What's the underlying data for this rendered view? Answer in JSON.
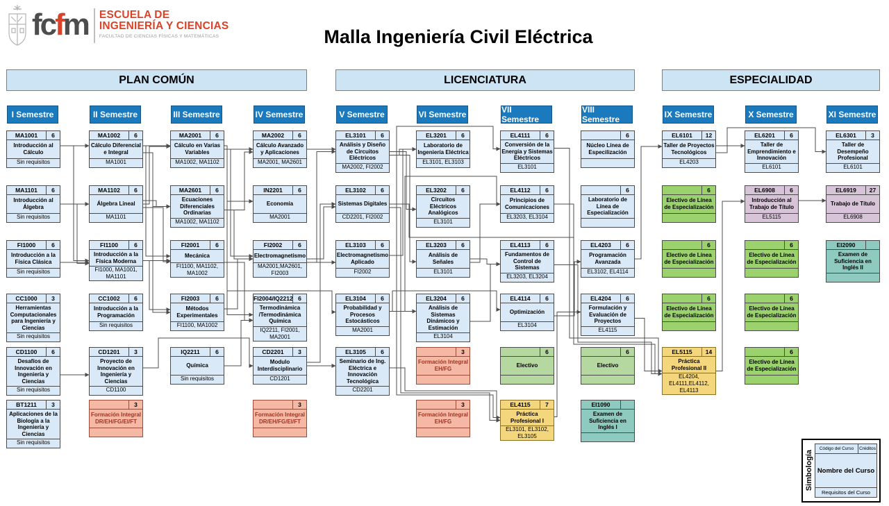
{
  "header": {
    "title": "Malla Ingeniería Civil Eléctrica",
    "logo": {
      "fcfm_part1": "fc",
      "fcfm_red": "f",
      "fcfm_part2": "m",
      "school_line1": "ESCUELA DE",
      "school_line2": "INGENIERÍA Y CIENCIAS",
      "faculty": "FACULTAD DE CIENCIAS FÍSICAS Y MATEMÁTICAS"
    }
  },
  "sections": [
    {
      "label": "PLAN COMÚN",
      "col_start": 1,
      "col_end": 4
    },
    {
      "label": "LICENCIATURA",
      "col_start": 5,
      "col_end": 8
    },
    {
      "label": "ESPECIALIDAD",
      "col_start": 9,
      "col_end": 11
    }
  ],
  "semesters": [
    {
      "label": "I Semestre"
    },
    {
      "label": "II Semestre"
    },
    {
      "label": "III Semestre"
    },
    {
      "label": "IV Semestre"
    },
    {
      "label": "V Semestre"
    },
    {
      "label": "VI Semestre"
    },
    {
      "label": "VII Semestre"
    },
    {
      "label": "VIII Semestre"
    },
    {
      "label": "IX Semestre"
    },
    {
      "label": "X Semestre"
    },
    {
      "label": "XI Semestre"
    }
  ],
  "colors": {
    "semester_header_bg": "#1b79bd",
    "semester_header_border": "#14568a",
    "semester_header_text": "#ffffff",
    "section_band_bg": "#cde4f5",
    "section_band_border": "#7f7f7f",
    "core_bg": "#d9e9f7",
    "core_border": "#4a4a4a",
    "fi_bg": "#f5b8a4",
    "fi_border": "#9c4a38",
    "fi_text": "#9e3423",
    "electivo_bg": "#b5d8a1",
    "electivo_border": "#4a4a4a",
    "linea_bg": "#9bd26e",
    "linea_border": "#4a4a4a",
    "practica_bg": "#f4d77c",
    "practica_border": "#8a7020",
    "titulo_bg": "#d8c4d8",
    "titulo_border": "#4a4a4a",
    "ingles_bg": "#8ecabf",
    "ingles_border": "#4a4a4a",
    "wire": "#4d4d4d"
  },
  "courses": [
    {
      "id": "MA1001",
      "col": 1,
      "row": 1,
      "code": "MA1001",
      "credits": "6",
      "name": "Introducción al Cálculo",
      "req": "Sin requisitos",
      "type": "core"
    },
    {
      "id": "MA1101",
      "col": 1,
      "row": 2,
      "code": "MA1101",
      "credits": "6",
      "name": "Introducción al Álgebra",
      "req": "Sin requisitos",
      "type": "core"
    },
    {
      "id": "FI1000",
      "col": 1,
      "row": 3,
      "code": "FI1000",
      "credits": "6",
      "name": "Introducción a la Física Clásica",
      "req": "Sin requisitos",
      "type": "core"
    },
    {
      "id": "CC1000",
      "col": 1,
      "row": 4,
      "code": "CC1000",
      "credits": "3",
      "name": "Herramientas Computacionales para Ingeniería y Ciencias",
      "req": "Sin requisitos",
      "type": "core"
    },
    {
      "id": "CD1100",
      "col": 1,
      "row": 5,
      "code": "CD1100",
      "credits": "6",
      "name": "Desafíos de Innovación en Ingeniería y Ciencias",
      "req": "Sin requisitos",
      "type": "core"
    },
    {
      "id": "BT1211",
      "col": 1,
      "row": 6,
      "code": "BT1211",
      "credits": "3",
      "name": "Aplicaciones de la Biología a la Ingeniería y Ciencias",
      "req": "Sin requisitos",
      "type": "core"
    },
    {
      "id": "MA1002",
      "col": 2,
      "row": 1,
      "code": "MA1002",
      "credits": "6",
      "name": "Cálculo Diferencial e Integral",
      "req": "MA1001",
      "type": "core"
    },
    {
      "id": "MA1102",
      "col": 2,
      "row": 2,
      "code": "MA1102",
      "credits": "6",
      "name": "Álgebra Lineal",
      "req": "MA1101",
      "type": "core"
    },
    {
      "id": "FI1100",
      "col": 2,
      "row": 3,
      "code": "FI1100",
      "credits": "6",
      "name": "Introducción a la Física Moderna",
      "req": "FI1000, MA1001, MA1101",
      "type": "core"
    },
    {
      "id": "CC1002",
      "col": 2,
      "row": 4,
      "code": "CC1002",
      "credits": "6",
      "name": "Introducción a la Programación",
      "req": "Sin requisitos",
      "type": "core"
    },
    {
      "id": "CD1201",
      "col": 2,
      "row": 5,
      "code": "CD1201",
      "credits": "3",
      "name": "Proyecto de Innovación en Ingeniería y Ciencias",
      "req": "CD1100",
      "type": "core"
    },
    {
      "id": "FI_II",
      "col": 2,
      "row": 6,
      "code": "",
      "credits": "3",
      "name": "Formación Integral DR/EH/FG/EI/FT",
      "req": "",
      "type": "fi"
    },
    {
      "id": "MA2001",
      "col": 3,
      "row": 1,
      "code": "MA2001",
      "credits": "6",
      "name": "Cálculo en Varias Variables",
      "req": "MA1002, MA1102",
      "type": "core"
    },
    {
      "id": "MA2601",
      "col": 3,
      "row": 2,
      "code": "MA2601",
      "credits": "6",
      "name": "Ecuaciones Diferenciales Ordinarias",
      "req": "MA1002, MA1102",
      "type": "core"
    },
    {
      "id": "FI2001",
      "col": 3,
      "row": 3,
      "code": "FI2001",
      "credits": "6",
      "name": "Mecánica",
      "req": "FI1100, MA1102, MA1002",
      "type": "core"
    },
    {
      "id": "FI2003",
      "col": 3,
      "row": 4,
      "code": "FI2003",
      "credits": "6",
      "name": "Métodos Experimentales",
      "req": "FI1100, MA1002",
      "type": "core"
    },
    {
      "id": "IQ2211",
      "col": 3,
      "row": 5,
      "code": "IQ2211",
      "credits": "6",
      "name": "Química",
      "req": "Sin requisitos",
      "type": "core"
    },
    {
      "id": "MA2002",
      "col": 4,
      "row": 1,
      "code": "MA2002",
      "credits": "6",
      "name": "Cálculo Avanzado y Aplicaciones",
      "req": "MA2001, MA2601",
      "type": "core"
    },
    {
      "id": "IN2201",
      "col": 4,
      "row": 2,
      "code": "IN2201",
      "credits": "6",
      "name": "Economía",
      "req": "MA2001",
      "type": "core"
    },
    {
      "id": "FI2002",
      "col": 4,
      "row": 3,
      "code": "FI2002",
      "credits": "6",
      "name": "Electromagnetismo",
      "req": "MA2001,MA2601, FI2003",
      "type": "core"
    },
    {
      "id": "FI2004",
      "col": 4,
      "row": 4,
      "code": "FI2004/IQ2212",
      "credits": "6",
      "name": "Termodinámica /Termodinámica Química",
      "req": "IQ2211, FI2001, MA2001",
      "type": "core"
    },
    {
      "id": "CD2201",
      "col": 4,
      "row": 5,
      "code": "CD2201",
      "credits": "3",
      "name": "Modulo Interdisciplinario",
      "req": "CD1201",
      "type": "core"
    },
    {
      "id": "FI_IV",
      "col": 4,
      "row": 6,
      "code": "",
      "credits": "3",
      "name": "Formación Integral DR/EH/FG/EI/FT",
      "req": "",
      "type": "fi"
    },
    {
      "id": "EL3101",
      "col": 5,
      "row": 1,
      "code": "EL3101",
      "credits": "6",
      "name": "Análisis y Diseño de Circuitos Eléctricos",
      "req": "MA2002, FI2002",
      "type": "core"
    },
    {
      "id": "EL3102",
      "col": 5,
      "row": 2,
      "code": "EL3102",
      "credits": "6",
      "name": "Sistemas Digitales",
      "req": "CD2201, FI2002",
      "type": "core"
    },
    {
      "id": "EL3103",
      "col": 5,
      "row": 3,
      "code": "EL3103",
      "credits": "6",
      "name": "Electromagnetismo Aplicado",
      "req": "FI2002",
      "type": "core"
    },
    {
      "id": "EL3104",
      "col": 5,
      "row": 4,
      "code": "EL3104",
      "credits": "6",
      "name": "Probabilidad y Procesos Estocásticos",
      "req": "MA2001",
      "type": "core"
    },
    {
      "id": "EL3105",
      "col": 5,
      "row": 5,
      "code": "EL3105",
      "credits": "6",
      "name": "Seminario de Ing. Eléctrica e Innovación Tecnológica",
      "req": "CD2201",
      "type": "core"
    },
    {
      "id": "EL3201",
      "col": 6,
      "row": 1,
      "code": "EL3201",
      "credits": "6",
      "name": "Laboratorio de Ingeniería Eléctrica",
      "req": "EL3101, EL3103",
      "type": "core"
    },
    {
      "id": "EL3202",
      "col": 6,
      "row": 2,
      "code": "EL3202",
      "credits": "6",
      "name": "Circuitos Eléctricos Analógicos",
      "req": "EL3101",
      "type": "core"
    },
    {
      "id": "EL3203",
      "col": 6,
      "row": 3,
      "code": "EL3203",
      "credits": "6",
      "name": "Análisis de Señales",
      "req": "EL3101",
      "type": "core"
    },
    {
      "id": "EL3204",
      "col": 6,
      "row": 4,
      "code": "EL3204",
      "credits": "6",
      "name": "Análisis de Sistemas Dinámicos y Estimación",
      "req": "EL3104",
      "type": "core"
    },
    {
      "id": "FI_VI1",
      "col": 6,
      "row": 5,
      "code": "",
      "credits": "3",
      "name": "Formación Integral EH/FG",
      "req": "",
      "type": "fi"
    },
    {
      "id": "FI_VI2",
      "col": 6,
      "row": 6,
      "code": "",
      "credits": "3",
      "name": "Formación Integral EH/FG",
      "req": "",
      "type": "fi"
    },
    {
      "id": "EL4111",
      "col": 7,
      "row": 1,
      "code": "EL4111",
      "credits": "6",
      "name": "Conversión de la Energía y Sistemas Eléctricos",
      "req": "EL3101",
      "type": "core"
    },
    {
      "id": "EL4112",
      "col": 7,
      "row": 2,
      "code": "EL4112",
      "credits": "6",
      "name": "Principios de Comunicaciones",
      "req": "EL3203, EL3104",
      "type": "core"
    },
    {
      "id": "EL4113",
      "col": 7,
      "row": 3,
      "code": "EL4113",
      "credits": "6",
      "name": "Fundamentos de Control de Sistemas",
      "req": "EL3203, EL3204",
      "type": "core"
    },
    {
      "id": "EL4114",
      "col": 7,
      "row": 4,
      "code": "EL4114",
      "credits": "6",
      "name": "Optimización",
      "req": "EL3104",
      "type": "core"
    },
    {
      "id": "ELEC_7",
      "col": 7,
      "row": 5,
      "code": "",
      "credits": "6",
      "name": "Electivo",
      "req": "",
      "type": "electivo"
    },
    {
      "id": "EL4115",
      "col": 7,
      "row": 6,
      "code": "EL4115",
      "credits": "7",
      "name": "Práctica Profesional I",
      "req": "EL3101, EL3102, EL3105",
      "type": "practica"
    },
    {
      "id": "NUCLEO",
      "col": 8,
      "row": 1,
      "code": "",
      "credits": "6",
      "name": "Núcleo Línea de Especilización",
      "req": "",
      "type": "core"
    },
    {
      "id": "LABLIN",
      "col": 8,
      "row": 2,
      "code": "",
      "credits": "6",
      "name": "Laboratorio de Línea de Especialización",
      "req": "",
      "type": "core"
    },
    {
      "id": "EL4203",
      "col": 8,
      "row": 3,
      "code": "EL4203",
      "credits": "6",
      "name": "Programación Avanzada",
      "req": "EL3102, EL4114",
      "type": "core"
    },
    {
      "id": "EL4204",
      "col": 8,
      "row": 4,
      "code": "EL4204",
      "credits": "6",
      "name": "Formulación y Evaluación de Proyectos",
      "req": "EL4115",
      "type": "core"
    },
    {
      "id": "ELEC_8",
      "col": 8,
      "row": 5,
      "code": "",
      "credits": "6",
      "name": "Electivo",
      "req": "",
      "type": "electivo"
    },
    {
      "id": "EI1090",
      "col": 8,
      "row": 6,
      "code": "EI1090",
      "credits": "",
      "name": "Examen de Suficiencia en Inglés I",
      "req": "",
      "type": "ingles"
    },
    {
      "id": "EL6101",
      "col": 9,
      "row": 1,
      "code": "EL6101",
      "credits": "12",
      "name": "Taller de Proyectos Tecnológicos",
      "req": "EL4203",
      "type": "core"
    },
    {
      "id": "LIN9A",
      "col": 9,
      "row": 2,
      "code": "",
      "credits": "6",
      "name": "Electivo de Línea de Especialización",
      "req": "",
      "type": "linea"
    },
    {
      "id": "LIN9B",
      "col": 9,
      "row": 3,
      "code": "",
      "credits": "6",
      "name": "Electivo de Línea de Especialización",
      "req": "",
      "type": "linea"
    },
    {
      "id": "LIN9C",
      "col": 9,
      "row": 4,
      "code": "",
      "credits": "6",
      "name": "Electivo de Línea de Especialización",
      "req": "",
      "type": "linea"
    },
    {
      "id": "EL5115",
      "col": 9,
      "row": 5,
      "code": "EL5115",
      "credits": "14",
      "name": "Práctica Profesional II",
      "req": "EL4204, EL4111,EL4112, EL4113",
      "type": "practica"
    },
    {
      "id": "EL6201",
      "col": 10,
      "row": 1,
      "code": "EL6201",
      "credits": "6",
      "name": "Taller de Emprendimiento e Innovación",
      "req": "EL6101",
      "type": "core"
    },
    {
      "id": "EL6908",
      "col": 10,
      "row": 2,
      "code": "EL6908",
      "credits": "6",
      "name": "Introducción al Trabajo de Título",
      "req": "EL5115",
      "type": "titulo"
    },
    {
      "id": "LIN10A",
      "col": 10,
      "row": 3,
      "code": "",
      "credits": "6",
      "name": "Electivo de Línea de Especialización",
      "req": "",
      "type": "linea"
    },
    {
      "id": "LIN10B",
      "col": 10,
      "row": 4,
      "code": "",
      "credits": "6",
      "name": "Electivo de Línea de Especialización",
      "req": "",
      "type": "linea"
    },
    {
      "id": "LIN10C",
      "col": 10,
      "row": 5,
      "code": "",
      "credits": "6",
      "name": "Electivo de Línea de Especialización",
      "req": "",
      "type": "linea"
    },
    {
      "id": "EL6301",
      "col": 11,
      "row": 1,
      "code": "EL6301",
      "credits": "3",
      "name": "Taller de Desempeño Profesional",
      "req": "EL6101",
      "type": "core"
    },
    {
      "id": "EL6919",
      "col": 11,
      "row": 2,
      "code": "EL6919",
      "credits": "27",
      "name": "Trabajo de Título",
      "req": "EL6908",
      "type": "titulo"
    },
    {
      "id": "EI2090",
      "col": 11,
      "row": 3,
      "code": "EI2090",
      "credits": "",
      "name": "Examen de Suficiencia en Inglés II",
      "req": "",
      "type": "ingles"
    }
  ],
  "links": [
    [
      "MA1001",
      "MA1002"
    ],
    [
      "MA1101",
      "MA1102"
    ],
    [
      "FI1000",
      "FI1100"
    ],
    [
      "MA1001",
      "FI1100"
    ],
    [
      "MA1101",
      "FI1100"
    ],
    [
      "CD1100",
      "CD1201"
    ],
    [
      "MA1002",
      "MA2001"
    ],
    [
      "MA1102",
      "MA2001"
    ],
    [
      "MA1002",
      "MA2601"
    ],
    [
      "MA1102",
      "MA2601"
    ],
    [
      "FI1100",
      "FI2001"
    ],
    [
      "MA1102",
      "FI2001"
    ],
    [
      "MA1002",
      "FI2001"
    ],
    [
      "FI1100",
      "FI2003"
    ],
    [
      "MA1002",
      "FI2003"
    ],
    [
      "CD1201",
      "CD2201"
    ],
    [
      "MA2001",
      "MA2002"
    ],
    [
      "MA2601",
      "MA2002"
    ],
    [
      "MA2001",
      "IN2201"
    ],
    [
      "MA2001",
      "FI2002"
    ],
    [
      "MA2601",
      "FI2002"
    ],
    [
      "FI2003",
      "FI2002"
    ],
    [
      "IQ2211",
      "FI2004"
    ],
    [
      "FI2001",
      "FI2004"
    ],
    [
      "MA2001",
      "FI2004"
    ],
    [
      "MA2002",
      "EL3101"
    ],
    [
      "FI2002",
      "EL3101"
    ],
    [
      "CD2201",
      "EL3102"
    ],
    [
      "FI2002",
      "EL3102"
    ],
    [
      "FI2002",
      "EL3103"
    ],
    [
      "MA2001",
      "EL3104"
    ],
    [
      "CD2201",
      "EL3105"
    ],
    [
      "EL3101",
      "EL3201"
    ],
    [
      "EL3103",
      "EL3201"
    ],
    [
      "EL3101",
      "EL3202"
    ],
    [
      "EL3101",
      "EL3203"
    ],
    [
      "EL3104",
      "EL3204"
    ],
    [
      "EL3101",
      "EL4111"
    ],
    [
      "EL3203",
      "EL4112"
    ],
    [
      "EL3104",
      "EL4112"
    ],
    [
      "EL3203",
      "EL4113"
    ],
    [
      "EL3204",
      "EL4113"
    ],
    [
      "EL3104",
      "EL4114"
    ],
    [
      "EL3101",
      "EL4115"
    ],
    [
      "EL3102",
      "EL4115"
    ],
    [
      "EL3105",
      "EL4115"
    ],
    [
      "EL3102",
      "EL4203"
    ],
    [
      "EL4114",
      "EL4203"
    ],
    [
      "EL4115",
      "EL4204"
    ],
    [
      "EL4203",
      "EL6101"
    ],
    [
      "EL4204",
      "EL5115"
    ],
    [
      "EL4111",
      "EL5115"
    ],
    [
      "EL4112",
      "EL5115"
    ],
    [
      "EL4113",
      "EL5115"
    ],
    [
      "EL6101",
      "EL6201"
    ],
    [
      "EL5115",
      "EL6908"
    ],
    [
      "EL6101",
      "EL6301"
    ],
    [
      "EL6908",
      "EL6919"
    ]
  ],
  "legend": {
    "title": "Simbología",
    "code_label": "Código del Curso",
    "credits_label": "Créditos",
    "name_label": "Nombre del Curso",
    "req_label": "Requisitos del Curso"
  }
}
